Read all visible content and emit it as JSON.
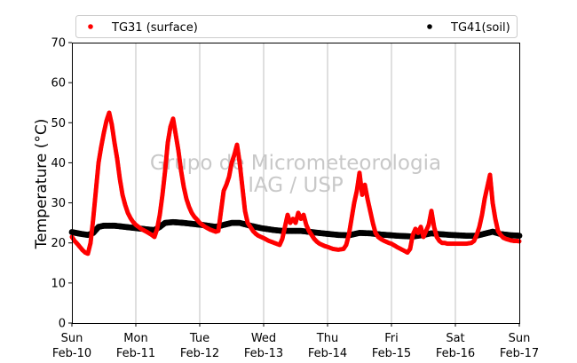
{
  "chart_data": {
    "type": "scatter",
    "ylabel": "Temperature (°C)",
    "ylim": [
      0,
      70
    ],
    "yticks": [
      0,
      10,
      20,
      30,
      40,
      50,
      60,
      70
    ],
    "xlim": [
      "2019-02-10 00:00",
      "2019-02-17 00:00"
    ],
    "xticks": [
      {
        "top": "Sun",
        "bottom": "Feb-10"
      },
      {
        "top": "Mon",
        "bottom": "Feb-11"
      },
      {
        "top": "Tue",
        "bottom": "Feb-12"
      },
      {
        "top": "Wed",
        "bottom": "Feb-13"
      },
      {
        "top": "Thu",
        "bottom": "Feb-14"
      },
      {
        "top": "Fri",
        "bottom": "Feb-15"
      },
      {
        "top": "Sat",
        "bottom": "Feb-16"
      },
      {
        "top": "Sun",
        "bottom": "Feb-17"
      }
    ],
    "grid": "vertical",
    "legend": "top",
    "watermark": [
      "Grupo de Micrometeorologia",
      "IAG / USP"
    ],
    "series": [
      {
        "name": "TG31 (surface)",
        "color": "#ff0000",
        "points": [
          [
            "2019-02-10 00:00",
            21.5
          ],
          [
            "2019-02-10 01:00",
            20.5
          ],
          [
            "2019-02-10 02:00",
            19.8
          ],
          [
            "2019-02-10 03:00",
            19.0
          ],
          [
            "2019-02-10 04:00",
            18.2
          ],
          [
            "2019-02-10 05:00",
            17.6
          ],
          [
            "2019-02-10 06:00",
            17.3
          ],
          [
            "2019-02-10 07:00",
            20.0
          ],
          [
            "2019-02-10 08:00",
            26.0
          ],
          [
            "2019-02-10 09:00",
            33.0
          ],
          [
            "2019-02-10 10:00",
            40.0
          ],
          [
            "2019-02-10 11:00",
            44.0
          ],
          [
            "2019-02-10 12:00",
            47.5
          ],
          [
            "2019-02-10 13:00",
            50.5
          ],
          [
            "2019-02-10 14:00",
            52.5
          ],
          [
            "2019-02-10 15:00",
            49.5
          ],
          [
            "2019-02-10 16:00",
            45.0
          ],
          [
            "2019-02-10 17:00",
            41.0
          ],
          [
            "2019-02-10 18:00",
            36.0
          ],
          [
            "2019-02-10 19:00",
            32.0
          ],
          [
            "2019-02-10 20:00",
            29.5
          ],
          [
            "2019-02-10 21:00",
            27.5
          ],
          [
            "2019-02-10 22:00",
            26.2
          ],
          [
            "2019-02-10 23:00",
            25.2
          ],
          [
            "2019-02-11 00:00",
            24.5
          ],
          [
            "2019-02-11 02:00",
            23.5
          ],
          [
            "2019-02-11 04:00",
            22.8
          ],
          [
            "2019-02-11 06:00",
            22.0
          ],
          [
            "2019-02-11 07:00",
            21.5
          ],
          [
            "2019-02-11 08:00",
            23.5
          ],
          [
            "2019-02-11 09:00",
            27.0
          ],
          [
            "2019-02-11 10:00",
            32.0
          ],
          [
            "2019-02-11 11:00",
            38.0
          ],
          [
            "2019-02-11 12:00",
            45.0
          ],
          [
            "2019-02-11 13:00",
            49.0
          ],
          [
            "2019-02-11 14:00",
            51.0
          ],
          [
            "2019-02-11 15:00",
            47.0
          ],
          [
            "2019-02-11 16:00",
            43.0
          ],
          [
            "2019-02-11 17:00",
            38.0
          ],
          [
            "2019-02-11 18:00",
            34.0
          ],
          [
            "2019-02-11 19:00",
            31.0
          ],
          [
            "2019-02-11 20:00",
            29.0
          ],
          [
            "2019-02-11 21:00",
            27.5
          ],
          [
            "2019-02-11 22:00",
            26.5
          ],
          [
            "2019-02-11 23:00",
            25.8
          ],
          [
            "2019-02-12 00:00",
            25.0
          ],
          [
            "2019-02-12 02:00",
            24.0
          ],
          [
            "2019-02-12 04:00",
            23.3
          ],
          [
            "2019-02-12 06:00",
            22.8
          ],
          [
            "2019-02-12 07:00",
            23.0
          ],
          [
            "2019-02-12 08:00",
            28.0
          ],
          [
            "2019-02-12 09:00",
            33.0
          ],
          [
            "2019-02-12 10:00",
            34.5
          ],
          [
            "2019-02-12 11:00",
            36.5
          ],
          [
            "2019-02-12 12:00",
            40.0
          ],
          [
            "2019-02-12 13:00",
            42.0
          ],
          [
            "2019-02-12 14:00",
            44.5
          ],
          [
            "2019-02-12 15:00",
            40.0
          ],
          [
            "2019-02-12 16:00",
            34.0
          ],
          [
            "2019-02-12 17:00",
            28.0
          ],
          [
            "2019-02-12 18:00",
            25.0
          ],
          [
            "2019-02-12 19:00",
            24.0
          ],
          [
            "2019-02-12 20:00",
            23.0
          ],
          [
            "2019-02-12 21:00",
            22.3
          ],
          [
            "2019-02-12 22:00",
            21.8
          ],
          [
            "2019-02-12 23:00",
            21.5
          ],
          [
            "2019-02-13 00:00",
            21.2
          ],
          [
            "2019-02-13 02:00",
            20.5
          ],
          [
            "2019-02-13 04:00",
            20.0
          ],
          [
            "2019-02-13 06:00",
            19.5
          ],
          [
            "2019-02-13 07:00",
            21.0
          ],
          [
            "2019-02-13 08:00",
            24.0
          ],
          [
            "2019-02-13 09:00",
            27.0
          ],
          [
            "2019-02-13 10:00",
            25.0
          ],
          [
            "2019-02-13 11:00",
            26.0
          ],
          [
            "2019-02-13 12:00",
            25.0
          ],
          [
            "2019-02-13 13:00",
            27.5
          ],
          [
            "2019-02-13 14:00",
            26.0
          ],
          [
            "2019-02-13 15:00",
            27.0
          ],
          [
            "2019-02-13 16:00",
            24.5
          ],
          [
            "2019-02-13 17:00",
            23.0
          ],
          [
            "2019-02-13 18:00",
            22.0
          ],
          [
            "2019-02-13 19:00",
            21.0
          ],
          [
            "2019-02-13 20:00",
            20.3
          ],
          [
            "2019-02-13 21:00",
            19.8
          ],
          [
            "2019-02-13 22:00",
            19.5
          ],
          [
            "2019-02-13 23:00",
            19.2
          ],
          [
            "2019-02-14 00:00",
            19.0
          ],
          [
            "2019-02-14 02:00",
            18.5
          ],
          [
            "2019-02-14 04:00",
            18.3
          ],
          [
            "2019-02-14 06:00",
            18.5
          ],
          [
            "2019-02-14 07:00",
            19.5
          ],
          [
            "2019-02-14 08:00",
            22.0
          ],
          [
            "2019-02-14 09:00",
            26.0
          ],
          [
            "2019-02-14 10:00",
            30.0
          ],
          [
            "2019-02-14 11:00",
            33.0
          ],
          [
            "2019-02-14 12:00",
            37.5
          ],
          [
            "2019-02-14 13:00",
            32.0
          ],
          [
            "2019-02-14 14:00",
            34.5
          ],
          [
            "2019-02-14 15:00",
            31.0
          ],
          [
            "2019-02-14 16:00",
            28.0
          ],
          [
            "2019-02-14 17:00",
            25.0
          ],
          [
            "2019-02-14 18:00",
            22.5
          ],
          [
            "2019-02-14 19:00",
            21.5
          ],
          [
            "2019-02-14 20:00",
            21.0
          ],
          [
            "2019-02-14 21:00",
            20.6
          ],
          [
            "2019-02-14 22:00",
            20.3
          ],
          [
            "2019-02-14 23:00",
            20.0
          ],
          [
            "2019-02-15 00:00",
            19.8
          ],
          [
            "2019-02-15 02:00",
            19.0
          ],
          [
            "2019-02-15 04:00",
            18.3
          ],
          [
            "2019-02-15 06:00",
            17.6
          ],
          [
            "2019-02-15 07:00",
            18.5
          ],
          [
            "2019-02-15 08:00",
            22.0
          ],
          [
            "2019-02-15 09:00",
            23.5
          ],
          [
            "2019-02-15 10:00",
            22.5
          ],
          [
            "2019-02-15 11:00",
            24.0
          ],
          [
            "2019-02-15 12:00",
            21.5
          ],
          [
            "2019-02-15 13:00",
            23.0
          ],
          [
            "2019-02-15 14:00",
            24.5
          ],
          [
            "2019-02-15 15:00",
            28.0
          ],
          [
            "2019-02-15 16:00",
            24.0
          ],
          [
            "2019-02-15 17:00",
            21.5
          ],
          [
            "2019-02-15 18:00",
            20.5
          ],
          [
            "2019-02-15 19:00",
            20.0
          ],
          [
            "2019-02-15 20:00",
            20.0
          ],
          [
            "2019-02-15 21:00",
            19.8
          ],
          [
            "2019-02-15 22:00",
            19.8
          ],
          [
            "2019-02-15 23:00",
            19.8
          ],
          [
            "2019-02-16 00:00",
            19.8
          ],
          [
            "2019-02-16 02:00",
            19.8
          ],
          [
            "2019-02-16 04:00",
            19.8
          ],
          [
            "2019-02-16 06:00",
            20.0
          ],
          [
            "2019-02-16 07:00",
            20.5
          ],
          [
            "2019-02-16 08:00",
            22.0
          ],
          [
            "2019-02-16 09:00",
            24.0
          ],
          [
            "2019-02-16 10:00",
            27.0
          ],
          [
            "2019-02-16 11:00",
            31.0
          ],
          [
            "2019-02-16 12:00",
            34.0
          ],
          [
            "2019-02-16 13:00",
            37.0
          ],
          [
            "2019-02-16 14:00",
            30.0
          ],
          [
            "2019-02-16 15:00",
            26.0
          ],
          [
            "2019-02-16 16:00",
            23.0
          ],
          [
            "2019-02-16 17:00",
            22.0
          ],
          [
            "2019-02-16 18:00",
            21.3
          ],
          [
            "2019-02-16 19:00",
            21.0
          ],
          [
            "2019-02-16 20:00",
            20.8
          ],
          [
            "2019-02-16 21:00",
            20.6
          ],
          [
            "2019-02-16 22:00",
            20.5
          ],
          [
            "2019-02-16 23:00",
            20.5
          ],
          [
            "2019-02-17 00:00",
            20.4
          ]
        ]
      },
      {
        "name": "TG41(soil)",
        "color": "#000000",
        "points": [
          [
            "2019-02-10 00:00",
            22.7
          ],
          [
            "2019-02-10 03:00",
            22.3
          ],
          [
            "2019-02-10 06:00",
            22.0
          ],
          [
            "2019-02-10 08:00",
            22.5
          ],
          [
            "2019-02-10 10:00",
            24.0
          ],
          [
            "2019-02-10 12:00",
            24.3
          ],
          [
            "2019-02-10 16:00",
            24.3
          ],
          [
            "2019-02-10 20:00",
            24.0
          ],
          [
            "2019-02-11 00:00",
            23.7
          ],
          [
            "2019-02-11 04:00",
            23.4
          ],
          [
            "2019-02-11 07:00",
            23.2
          ],
          [
            "2019-02-11 09:00",
            24.0
          ],
          [
            "2019-02-11 11:00",
            25.0
          ],
          [
            "2019-02-11 14:00",
            25.2
          ],
          [
            "2019-02-11 18:00",
            25.0
          ],
          [
            "2019-02-11 22:00",
            24.7
          ],
          [
            "2019-02-12 02:00",
            24.4
          ],
          [
            "2019-02-12 06:00",
            24.0
          ],
          [
            "2019-02-12 09:00",
            24.5
          ],
          [
            "2019-02-12 12:00",
            25.0
          ],
          [
            "2019-02-12 15:00",
            25.0
          ],
          [
            "2019-02-12 19:00",
            24.3
          ],
          [
            "2019-02-12 23:00",
            23.7
          ],
          [
            "2019-02-13 04:00",
            23.2
          ],
          [
            "2019-02-13 07:00",
            23.0
          ],
          [
            "2019-02-13 10:00",
            23.0
          ],
          [
            "2019-02-13 14:00",
            23.0
          ],
          [
            "2019-02-13 18:00",
            22.7
          ],
          [
            "2019-02-13 22:00",
            22.4
          ],
          [
            "2019-02-14 04:00",
            22.0
          ],
          [
            "2019-02-14 08:00",
            21.9
          ],
          [
            "2019-02-14 12:00",
            22.5
          ],
          [
            "2019-02-14 16:00",
            22.4
          ],
          [
            "2019-02-14 20:00",
            22.1
          ],
          [
            "2019-02-15 02:00",
            21.8
          ],
          [
            "2019-02-15 08:00",
            21.6
          ],
          [
            "2019-02-15 12:00",
            22.0
          ],
          [
            "2019-02-15 15:00",
            22.4
          ],
          [
            "2019-02-15 18:00",
            22.2
          ],
          [
            "2019-02-15 22:00",
            22.0
          ],
          [
            "2019-02-16 04:00",
            21.8
          ],
          [
            "2019-02-16 08:00",
            21.8
          ],
          [
            "2019-02-16 11:00",
            22.3
          ],
          [
            "2019-02-16 14:00",
            22.8
          ],
          [
            "2019-02-16 17:00",
            22.2
          ],
          [
            "2019-02-16 21:00",
            21.9
          ],
          [
            "2019-02-17 00:00",
            21.8
          ]
        ]
      }
    ]
  }
}
